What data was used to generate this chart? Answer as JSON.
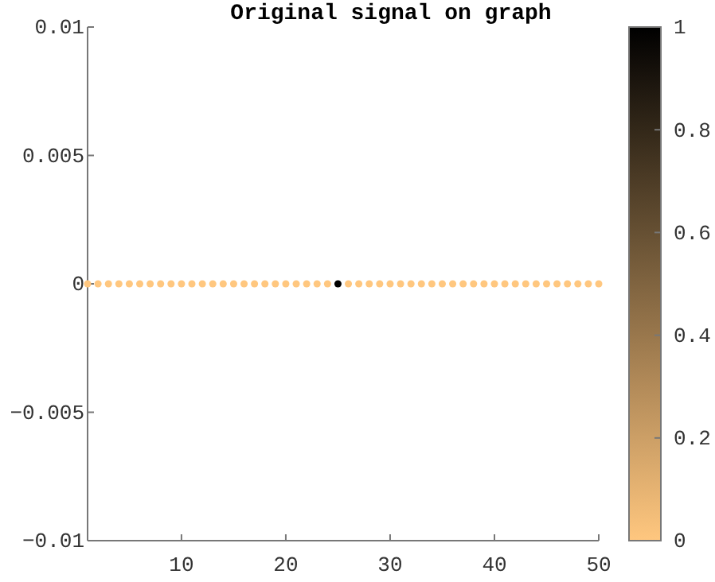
{
  "chart_data": {
    "type": "scatter",
    "title": "Original signal on graph",
    "x": [
      1,
      2,
      3,
      4,
      5,
      6,
      7,
      8,
      9,
      10,
      11,
      12,
      13,
      14,
      15,
      16,
      17,
      18,
      19,
      20,
      21,
      22,
      23,
      24,
      25,
      26,
      27,
      28,
      29,
      30,
      31,
      32,
      33,
      34,
      35,
      36,
      37,
      38,
      39,
      40,
      41,
      42,
      43,
      44,
      45,
      46,
      47,
      48,
      49,
      50
    ],
    "values": [
      0,
      0,
      0,
      0,
      0,
      0,
      0,
      0,
      0,
      0,
      0,
      0,
      0,
      0,
      0,
      0,
      0,
      0,
      0,
      0,
      0,
      0,
      0,
      0,
      0,
      0,
      0,
      0,
      0,
      0,
      0,
      0,
      0,
      0,
      0,
      0,
      0,
      0,
      0,
      0,
      0,
      0,
      0,
      0,
      0,
      0,
      0,
      0,
      0,
      0
    ],
    "cvalues": [
      0,
      0,
      0,
      0,
      0,
      0,
      0,
      0,
      0,
      0,
      0,
      0,
      0,
      0,
      0,
      0,
      0,
      0,
      0,
      0,
      0,
      0,
      0,
      0,
      1,
      0,
      0,
      0,
      0,
      0,
      0,
      0,
      0,
      0,
      0,
      0,
      0,
      0,
      0,
      0,
      0,
      0,
      0,
      0,
      0,
      0,
      0,
      0,
      0,
      0
    ],
    "xlim": [
      1,
      50
    ],
    "xticks": [
      10,
      20,
      30,
      40,
      50
    ],
    "ylim": [
      -0.01,
      0.01
    ],
    "yticks": [
      -0.01,
      -0.005,
      0,
      0.005,
      0.01
    ],
    "clim": [
      0,
      1
    ],
    "cticks": [
      0,
      0.2,
      0.4,
      0.6,
      0.8,
      1
    ],
    "marker": "circle"
  }
}
